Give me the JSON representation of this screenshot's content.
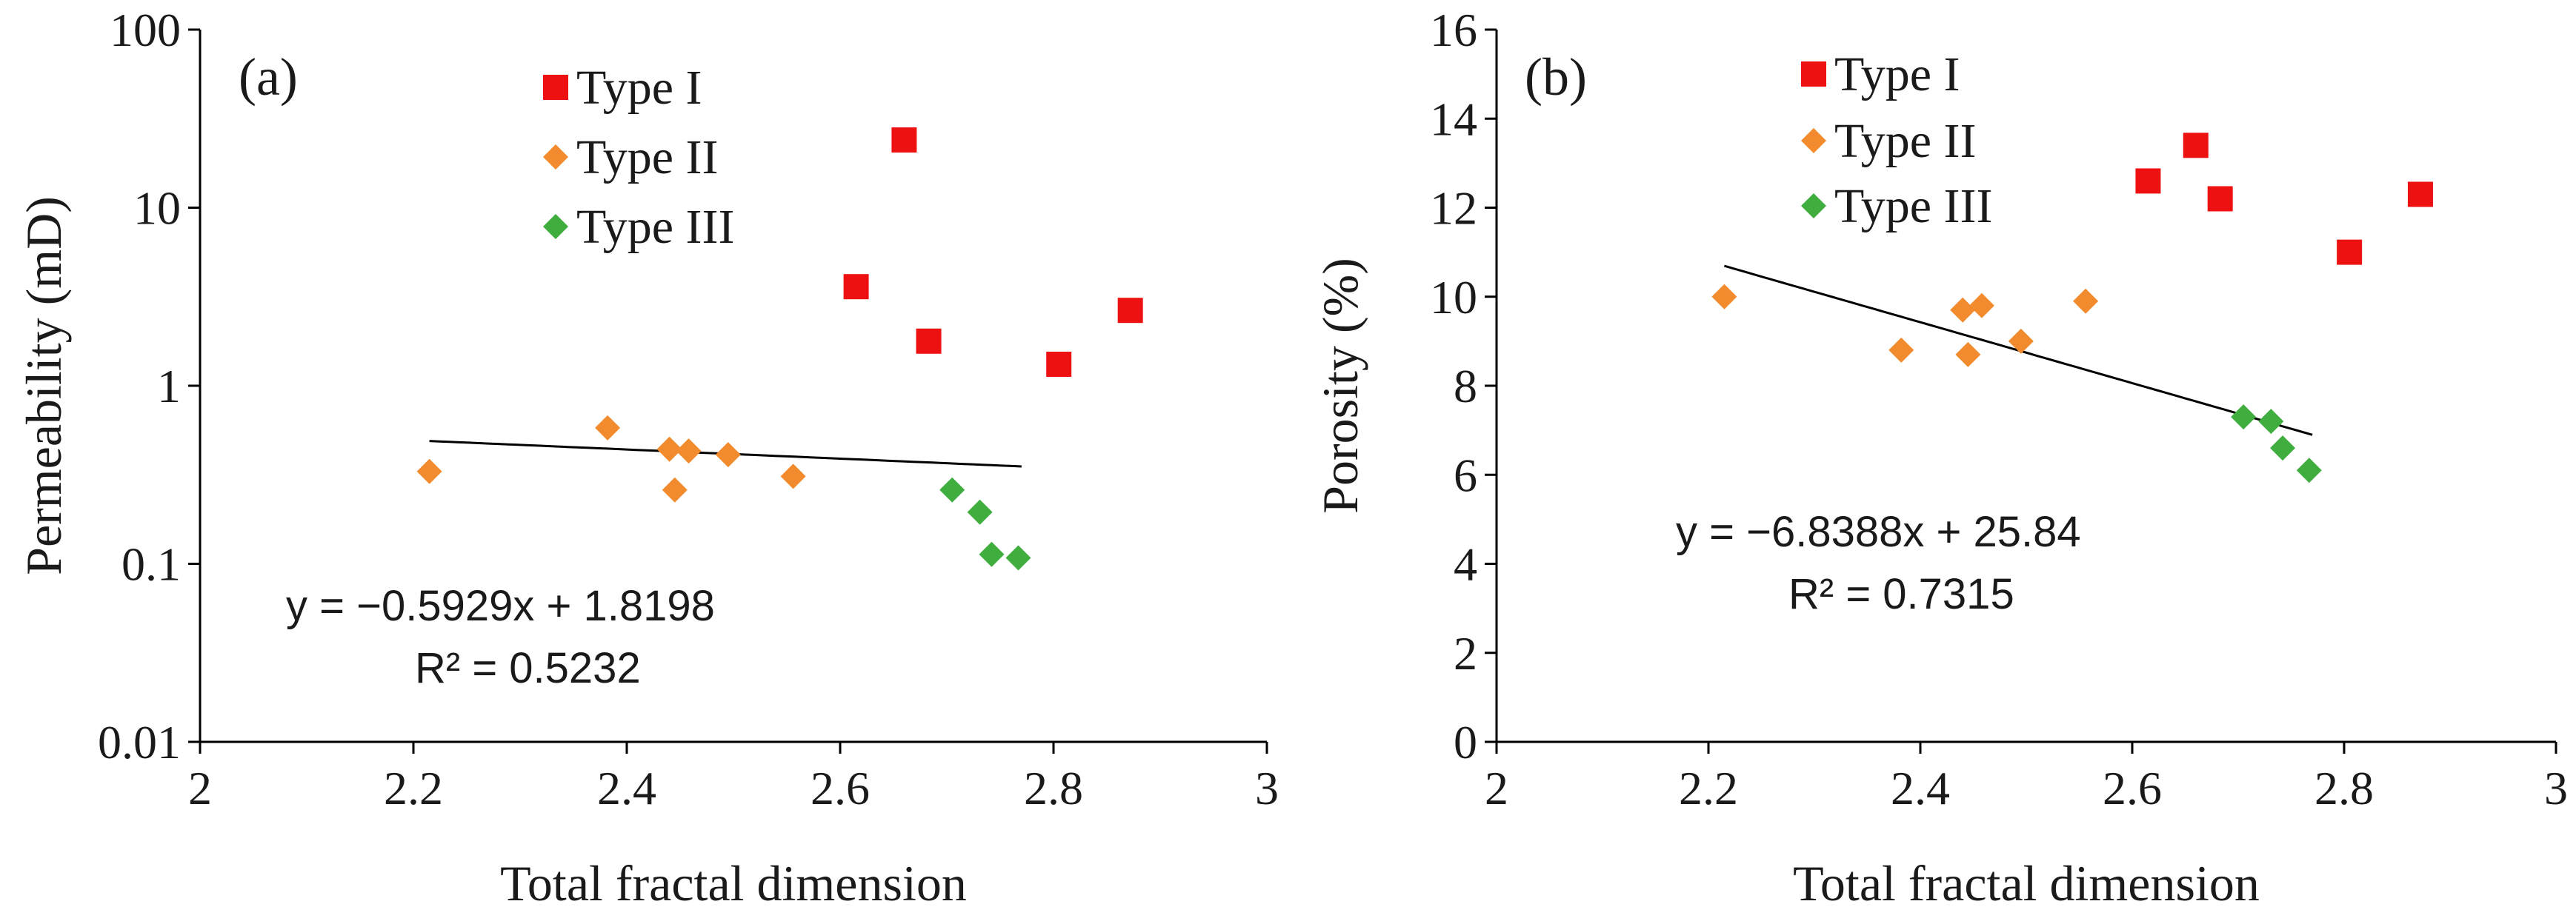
{
  "chart_data": [
    {
      "type": "scatter",
      "panel_label": "(a)",
      "xlabel": "Total fractal dimension",
      "ylabel": "Permeability (mD)",
      "xlim": [
        2,
        3
      ],
      "ylim": [
        0.01,
        100
      ],
      "yscale": "log",
      "x_ticks": [
        2,
        2.2,
        2.4,
        2.6,
        2.8,
        3
      ],
      "x_tick_labels": [
        "2",
        "2.2",
        "2.4",
        "2.6",
        "2.8",
        "3"
      ],
      "y_ticks": [
        0.01,
        0.1,
        1,
        10,
        100
      ],
      "y_tick_labels": [
        "0.01",
        "0.1",
        "1",
        "10",
        "100"
      ],
      "legend": [
        "Type I",
        "Type II",
        "Type III"
      ],
      "legend_position": "top",
      "series": [
        {
          "name": "Type I",
          "marker": "square",
          "color": "#ee1111",
          "x": [
            2.615,
            2.66,
            2.683,
            2.805,
            2.872
          ],
          "y": [
            3.6,
            24,
            1.78,
            1.32,
            2.65
          ]
        },
        {
          "name": "Type II",
          "marker": "diamond",
          "color": "#f28a2e",
          "x": [
            2.215,
            2.382,
            2.44,
            2.445,
            2.458,
            2.495,
            2.556
          ],
          "y": [
            0.33,
            0.58,
            0.44,
            0.26,
            0.43,
            0.41,
            0.31
          ]
        },
        {
          "name": "Type III",
          "marker": "diamond",
          "color": "#3fae3f",
          "x": [
            2.705,
            2.731,
            2.742,
            2.767
          ],
          "y": [
            0.26,
            0.195,
            0.113,
            0.108
          ]
        }
      ],
      "trendline": {
        "kind": "exponential",
        "a": 1.8198,
        "b": -0.5929,
        "x_range": [
          2.215,
          2.77
        ]
      },
      "equation": "y = −0.5929x + 1.8198",
      "r_squared": "R² = 0.5232"
    },
    {
      "type": "scatter",
      "panel_label": "(b)",
      "xlabel": "Total fractal dimension",
      "ylabel": "Porosity (%)",
      "xlim": [
        2,
        3
      ],
      "ylim": [
        0,
        16
      ],
      "yscale": "linear",
      "x_ticks": [
        2,
        2.2,
        2.4,
        2.6,
        2.8,
        3
      ],
      "x_tick_labels": [
        "2",
        "2.2",
        "2.4",
        "2.6",
        "2.8",
        "3"
      ],
      "y_ticks": [
        0,
        2,
        4,
        6,
        8,
        10,
        12,
        14,
        16
      ],
      "y_tick_labels": [
        "0",
        "2",
        "4",
        "6",
        "8",
        "10",
        "12",
        "14",
        "16"
      ],
      "legend": [
        "Type I",
        "Type II",
        "Type III"
      ],
      "legend_position": "top",
      "series": [
        {
          "name": "Type I",
          "marker": "square",
          "color": "#ee1111",
          "x": [
            2.615,
            2.66,
            2.683,
            2.805,
            2.872
          ],
          "y": [
            12.6,
            13.4,
            12.2,
            11.0,
            12.3
          ]
        },
        {
          "name": "Type II",
          "marker": "diamond",
          "color": "#f28a2e",
          "x": [
            2.215,
            2.382,
            2.44,
            2.445,
            2.458,
            2.495,
            2.556
          ],
          "y": [
            10.0,
            8.8,
            9.7,
            8.7,
            9.8,
            9.0,
            9.9
          ]
        },
        {
          "name": "Type III",
          "marker": "diamond",
          "color": "#3fae3f",
          "x": [
            2.705,
            2.731,
            2.742,
            2.767
          ],
          "y": [
            7.3,
            7.2,
            6.6,
            6.1
          ]
        }
      ],
      "trendline": {
        "kind": "linear",
        "a": 25.84,
        "b": -6.8388,
        "x_range": [
          2.215,
          2.77
        ]
      },
      "equation": "y = −6.8388x + 25.84",
      "r_squared": "R² = 0.7315"
    }
  ]
}
